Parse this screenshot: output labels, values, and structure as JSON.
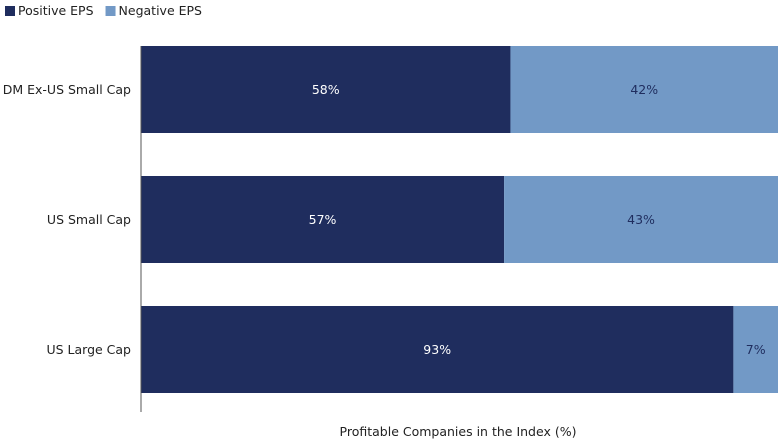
{
  "chart_data": {
    "type": "bar",
    "orientation": "horizontal",
    "stacked": true,
    "categories": [
      "DM Ex-US Small Cap",
      "US Small Cap",
      "US Large Cap"
    ],
    "series": [
      {
        "name": "Positive EPS",
        "values": [
          58,
          57,
          93
        ],
        "labels": [
          "58%",
          "57%",
          "93%"
        ],
        "color": "#1f2d5e",
        "label_color": "#ffffff"
      },
      {
        "name": "Negative EPS",
        "values": [
          42,
          43,
          7
        ],
        "labels": [
          "42%",
          "43%",
          "7%"
        ],
        "color": "#7299c6",
        "label_color": "#1f2d5e"
      }
    ],
    "xlabel": "Profitable Companies in the Index (%)",
    "xlim": [
      0,
      100
    ],
    "grid": false,
    "legend": "top-left"
  }
}
